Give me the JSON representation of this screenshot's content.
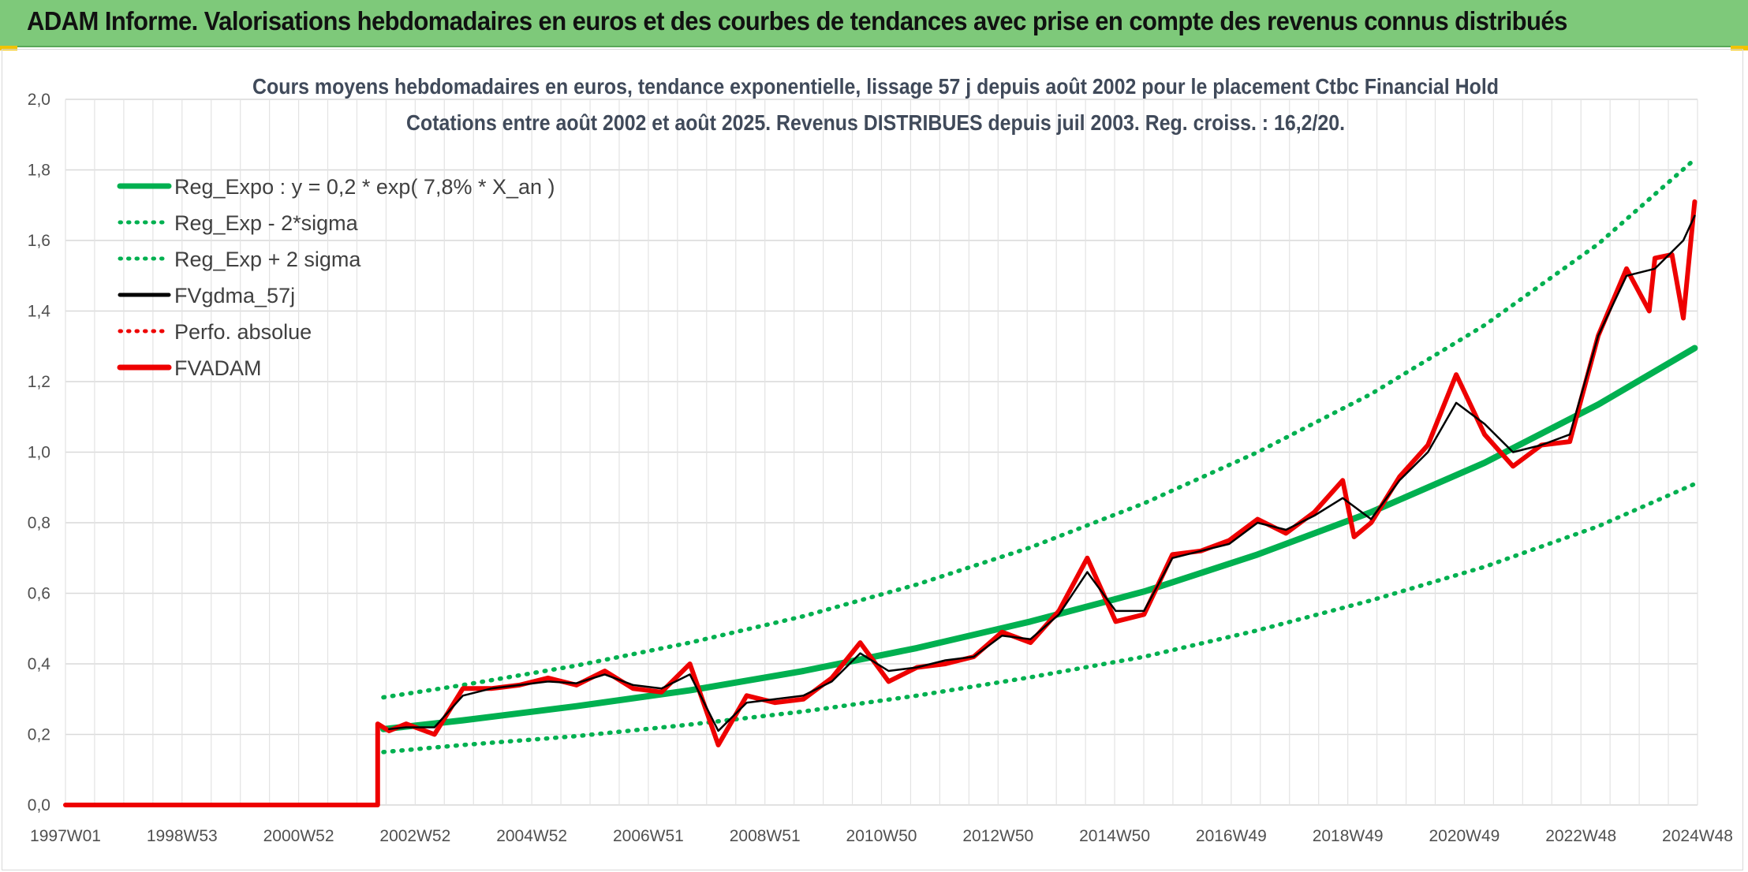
{
  "banner": {
    "text": "ADAM Informe. Valorisations hebdomadaires en euros et des courbes de tendances avec prise en compte des revenus connus distribués"
  },
  "colors": {
    "banner_bg": "#7ec97a",
    "reg_expo": "#00b050",
    "fvgdma": "#000000",
    "fvadam": "#ee0000",
    "perfo": "#ee0000"
  },
  "chart_data": {
    "type": "line",
    "title_lines": [
      "Cours moyens hebdomadaires en euros, tendance exponentielle, lissage 57 j depuis août 2002 pour le placement Ctbc Financial Hold",
      "Cotations entre août 2002 et août 2025. Revenus DISTRIBUES depuis juil 2003. Reg. croiss. : 16,2/20."
    ],
    "xlabel": "",
    "ylabel": "",
    "ylim": [
      0,
      2.0
    ],
    "yticks": [
      "0,0",
      "0,2",
      "0,4",
      "0,6",
      "0,8",
      "1,0",
      "1,2",
      "1,4",
      "1,6",
      "1,8",
      "2,0"
    ],
    "xticks": [
      "1997W01",
      "1998W53",
      "2000W52",
      "2002W52",
      "2004W52",
      "2006W51",
      "2008W51",
      "2010W50",
      "2012W50",
      "2014W50",
      "2016W49",
      "2018W49",
      "2020W49",
      "2022W48",
      "2024W48"
    ],
    "xrange": [
      1997.0,
      2025.75
    ],
    "grid": true,
    "legend_position": "top-left",
    "legend": [
      {
        "label": "Reg_Expo : y = 0,2 * exp( 7,8% *  X_an )",
        "series": "reg_expo",
        "style": "solid-thick"
      },
      {
        "label": "Reg_Exp - 2*sigma",
        "series": "reg_minus",
        "style": "dotted"
      },
      {
        "label": "Reg_Exp + 2 sigma",
        "series": "reg_plus",
        "style": "dotted"
      },
      {
        "label": "FVgdma_57j",
        "series": "fvgdma",
        "style": "solid"
      },
      {
        "label": "Perfo. absolue",
        "series": "perfo",
        "style": "dotted"
      },
      {
        "label": "FVADAM",
        "series": "fvadam",
        "style": "solid-thick"
      }
    ],
    "series": [
      {
        "name": "Reg_Expo : y = 0,2 * exp( 7,8% *  X_an )",
        "key": "reg_expo",
        "x": [
          2002.6,
          2004,
          2006,
          2008,
          2010,
          2012,
          2014,
          2016,
          2018,
          2020,
          2022,
          2024,
          2025.7
        ],
        "y": [
          0.215,
          0.24,
          0.28,
          0.325,
          0.38,
          0.445,
          0.52,
          0.605,
          0.71,
          0.83,
          0.97,
          1.135,
          1.295
        ]
      },
      {
        "name": "Reg_Exp - 2*sigma",
        "key": "reg_minus",
        "x": [
          2002.6,
          2004,
          2006,
          2008,
          2010,
          2012,
          2014,
          2016,
          2018,
          2020,
          2022,
          2024,
          2025.7
        ],
        "y": [
          0.15,
          0.17,
          0.195,
          0.228,
          0.265,
          0.31,
          0.362,
          0.42,
          0.495,
          0.58,
          0.675,
          0.79,
          0.91
        ]
      },
      {
        "name": "Reg_Exp + 2 sigma",
        "key": "reg_plus",
        "x": [
          2002.6,
          2004,
          2006,
          2008,
          2010,
          2012,
          2014,
          2016,
          2018,
          2020,
          2022,
          2024,
          2025.7
        ],
        "y": [
          0.305,
          0.34,
          0.395,
          0.46,
          0.535,
          0.625,
          0.73,
          0.855,
          1.0,
          1.165,
          1.36,
          1.59,
          1.83
        ]
      },
      {
        "name": "FVgdma_57j",
        "key": "fvgdma",
        "x": [
          2002.7,
          2003,
          2003.5,
          2004,
          2004.5,
          2005,
          2005.5,
          2006,
          2006.5,
          2007,
          2007.5,
          2008,
          2008.5,
          2009,
          2009.5,
          2010,
          2010.5,
          2011,
          2011.5,
          2012,
          2012.5,
          2013,
          2013.5,
          2014,
          2014.5,
          2015,
          2015.5,
          2016,
          2016.5,
          2017,
          2017.5,
          2018,
          2018.5,
          2019,
          2019.5,
          2020,
          2020.5,
          2021,
          2021.5,
          2022,
          2022.5,
          2023,
          2023.5,
          2024,
          2024.5,
          2025,
          2025.5,
          2025.7
        ],
        "y": [
          0.215,
          0.22,
          0.22,
          0.31,
          0.33,
          0.34,
          0.35,
          0.345,
          0.37,
          0.34,
          0.33,
          0.37,
          0.21,
          0.29,
          0.3,
          0.31,
          0.35,
          0.43,
          0.38,
          0.39,
          0.41,
          0.42,
          0.48,
          0.47,
          0.54,
          0.66,
          0.55,
          0.55,
          0.7,
          0.72,
          0.74,
          0.8,
          0.78,
          0.82,
          0.87,
          0.81,
          0.92,
          1.0,
          1.14,
          1.08,
          1.0,
          1.02,
          1.05,
          1.33,
          1.5,
          1.52,
          1.6,
          1.67
        ]
      },
      {
        "name": "FVADAM",
        "key": "fvadam",
        "x": [
          1997.0,
          2002.5,
          2002.5,
          2002.7,
          2003,
          2003.5,
          2004,
          2004.5,
          2005,
          2005.5,
          2006,
          2006.5,
          2007,
          2007.5,
          2008,
          2008.5,
          2009,
          2009.5,
          2010,
          2010.5,
          2011,
          2011.5,
          2012,
          2012.5,
          2013,
          2013.5,
          2014,
          2014.5,
          2015,
          2015.5,
          2016,
          2016.5,
          2017,
          2017.5,
          2018,
          2018.5,
          2019,
          2019.5,
          2019.7,
          2020,
          2020.5,
          2021,
          2021.5,
          2022,
          2022.5,
          2023,
          2023.5,
          2024,
          2024.5,
          2024.9,
          2025,
          2025.3,
          2025.5,
          2025.7
        ],
        "y": [
          0.0,
          0.0,
          0.23,
          0.21,
          0.23,
          0.2,
          0.33,
          0.33,
          0.34,
          0.36,
          0.34,
          0.38,
          0.33,
          0.32,
          0.4,
          0.17,
          0.31,
          0.29,
          0.3,
          0.36,
          0.46,
          0.35,
          0.39,
          0.4,
          0.42,
          0.49,
          0.46,
          0.55,
          0.7,
          0.52,
          0.54,
          0.71,
          0.72,
          0.75,
          0.81,
          0.77,
          0.83,
          0.92,
          0.76,
          0.8,
          0.93,
          1.02,
          1.22,
          1.05,
          0.96,
          1.02,
          1.03,
          1.33,
          1.52,
          1.4,
          1.55,
          1.56,
          1.38,
          1.71
        ]
      }
    ]
  }
}
